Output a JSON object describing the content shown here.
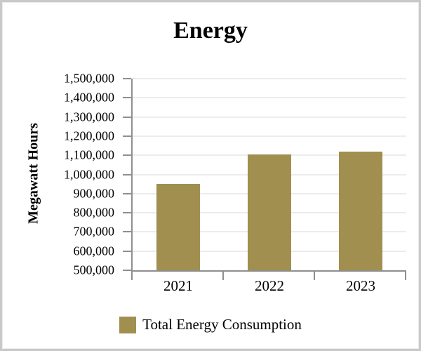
{
  "window": {
    "background": "#ffffff",
    "border_color": "#c9c9c9"
  },
  "chart_data": {
    "type": "bar",
    "title": "Energy",
    "xlabel": "",
    "ylabel": "Megawatt Hours",
    "categories": [
      "2021",
      "2022",
      "2023"
    ],
    "series": [
      {
        "name": "Total Energy Consumption",
        "values": [
          950000,
          1105000,
          1118000
        ],
        "color": "#a08f4f"
      }
    ],
    "ylim": [
      500000,
      1500000
    ],
    "ytick_step": 100000,
    "ytick_labels": [
      "1,500,000",
      "1,400,000",
      "1,300,000",
      "1,200,000",
      "1,100,000",
      "1,000,000",
      "900,000",
      "800,000",
      "700,000",
      "600,000",
      "500,000"
    ],
    "grid": "horizontal",
    "gridline_color": "#ececec",
    "axis_color": "#8f8f8f",
    "legend_position": "bottom"
  }
}
